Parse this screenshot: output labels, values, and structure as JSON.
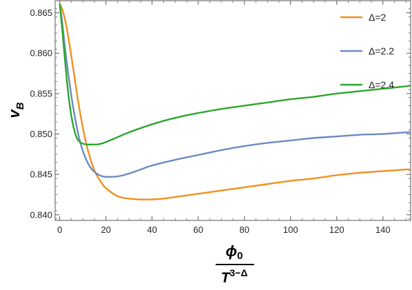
{
  "chart_data": {
    "type": "line",
    "xlim": [
      -2,
      152
    ],
    "ylim": [
      0.8393,
      0.8665
    ],
    "xticks": [
      0,
      20,
      40,
      60,
      80,
      100,
      120,
      140
    ],
    "xtick_labels": [
      "0",
      "20",
      "40",
      "60",
      "80",
      "100",
      "120",
      "140"
    ],
    "yticks": [
      0.84,
      0.845,
      0.85,
      0.855,
      0.86,
      0.865
    ],
    "ytick_labels": [
      "0.840",
      "0.845",
      "0.850",
      "0.855",
      "0.860",
      "0.865"
    ],
    "ylabel": {
      "main": "v",
      "sub": "B"
    },
    "xlabel": {
      "numerator": "ϕ",
      "numerator_sub": "0",
      "denominator": "T",
      "denominator_sup": "3−Δ"
    },
    "grid": false,
    "legend_position": "top-right",
    "series": [
      {
        "name": "Δ=2",
        "color": "#F28E1D",
        "x": [
          0,
          1,
          2,
          3,
          4,
          5,
          6,
          7,
          8,
          10,
          12,
          15,
          18,
          20,
          25,
          30,
          35,
          40,
          45,
          50,
          60,
          70,
          80,
          90,
          100,
          110,
          120,
          130,
          140,
          150,
          152
        ],
        "y": [
          0.8661,
          0.8655,
          0.8645,
          0.8632,
          0.8615,
          0.8597,
          0.8578,
          0.8559,
          0.854,
          0.8508,
          0.8482,
          0.8455,
          0.844,
          0.8433,
          0.8423,
          0.842,
          0.8419,
          0.8419,
          0.842,
          0.8422,
          0.8426,
          0.843,
          0.8434,
          0.8438,
          0.8442,
          0.8445,
          0.8449,
          0.8452,
          0.8454,
          0.8456,
          0.8456
        ]
      },
      {
        "name": "Δ=2.2",
        "color": "#6A8BBF",
        "x": [
          0,
          1,
          2,
          3,
          4,
          5,
          6,
          8,
          10,
          12,
          14,
          16,
          18,
          20,
          23,
          26,
          30,
          35,
          40,
          50,
          60,
          70,
          80,
          90,
          100,
          110,
          120,
          130,
          140,
          150,
          152
        ],
        "y": [
          0.8661,
          0.864,
          0.8614,
          0.859,
          0.8568,
          0.8548,
          0.853,
          0.85,
          0.8479,
          0.8465,
          0.8456,
          0.8451,
          0.8448,
          0.8447,
          0.8447,
          0.8448,
          0.8451,
          0.8456,
          0.8461,
          0.8468,
          0.8474,
          0.848,
          0.8485,
          0.8489,
          0.8492,
          0.8495,
          0.8497,
          0.8499,
          0.85,
          0.8502,
          0.8502
        ]
      },
      {
        "name": "Δ=2.4",
        "color": "#2BA62B",
        "x": [
          0,
          1,
          2,
          3,
          4,
          5,
          6,
          7,
          8,
          10,
          12,
          14,
          16,
          18,
          20,
          25,
          30,
          40,
          50,
          60,
          70,
          80,
          90,
          100,
          110,
          120,
          130,
          140,
          150,
          152
        ],
        "y": [
          0.8661,
          0.8632,
          0.86,
          0.8569,
          0.8543,
          0.8523,
          0.8508,
          0.8498,
          0.8492,
          0.8488,
          0.8487,
          0.8487,
          0.8487,
          0.8488,
          0.849,
          0.8496,
          0.8502,
          0.8512,
          0.852,
          0.8526,
          0.8531,
          0.8535,
          0.8539,
          0.8543,
          0.8546,
          0.855,
          0.8553,
          0.8556,
          0.8559,
          0.856
        ]
      }
    ]
  }
}
